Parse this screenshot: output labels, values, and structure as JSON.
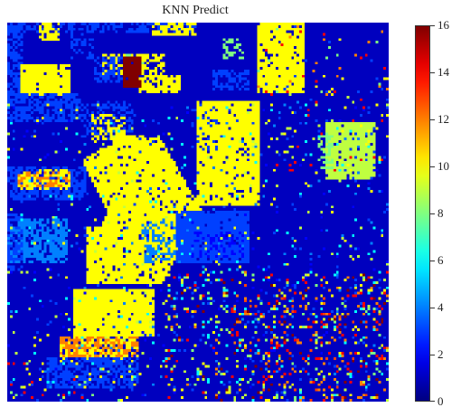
{
  "chart_data": {
    "type": "heatmap",
    "title": "KNN Predict",
    "xlabel": "",
    "ylabel": "",
    "colormap": "jet",
    "grid": false,
    "colorbar": {
      "position": "right",
      "min": 0,
      "max": 16,
      "ticks": [
        0,
        2,
        4,
        6,
        8,
        10,
        12,
        14,
        16
      ],
      "tick_labels": [
        "0",
        "2",
        "4",
        "6",
        "8",
        "10",
        "12",
        "14",
        "16"
      ]
    },
    "grid_size": [
      145,
      145
    ],
    "value_range": [
      0,
      16
    ],
    "background_class": 1,
    "regions": [
      {
        "class": 10,
        "desc": "large diagonal field band, lower-left to upper-middle"
      },
      {
        "class": 10,
        "desc": "upper-middle square field"
      },
      {
        "class": 10,
        "desc": "upper-right block"
      },
      {
        "class": 10,
        "desc": "lower-left square field"
      },
      {
        "class": 9,
        "desc": "right-side field"
      },
      {
        "class": 4,
        "desc": "left-middle strip"
      },
      {
        "class": 3,
        "desc": "center-right block"
      },
      {
        "class": 16,
        "desc": "small top cluster"
      },
      {
        "class": 12,
        "desc": "lower-left cluster"
      },
      {
        "class": 14,
        "desc": "scattered speckles, lower-right"
      }
    ]
  }
}
